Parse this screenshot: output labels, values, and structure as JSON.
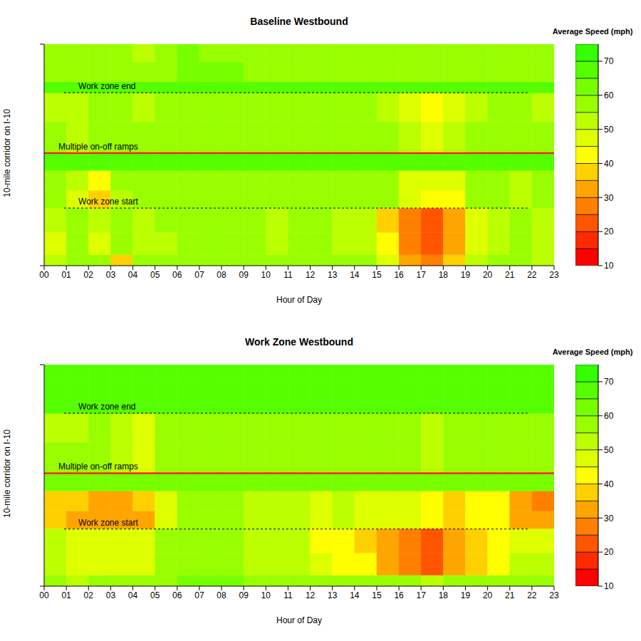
{
  "chart_data": [
    {
      "type": "heatmap",
      "title": "Baseline Westbound",
      "x_label": "Hour of Day",
      "y_label": "10-mile corridor on I-10",
      "xlim": [
        0,
        23
      ],
      "xticks": [
        {
          "value": 0,
          "label": "00"
        },
        {
          "value": 1,
          "label": "01"
        },
        {
          "value": 2,
          "label": "02"
        },
        {
          "value": 3,
          "label": "03"
        },
        {
          "value": 4,
          "label": "04"
        },
        {
          "value": 5,
          "label": "05"
        },
        {
          "value": 6,
          "label": "06"
        },
        {
          "value": 7,
          "label": "07"
        },
        {
          "value": 8,
          "label": "08"
        },
        {
          "value": 9,
          "label": "09"
        },
        10,
        11,
        12,
        13,
        14,
        15,
        16,
        17,
        18,
        19,
        20,
        21,
        22,
        23
      ],
      "ylim": [
        0,
        10
      ],
      "yticks": [
        0,
        10
      ],
      "tick_labels": "x",
      "x_edges": [
        0,
        1,
        2,
        3,
        4,
        5,
        6,
        7,
        8,
        9,
        10,
        11,
        12,
        13,
        14,
        15,
        16,
        17,
        18,
        19,
        20,
        21,
        22,
        23
      ],
      "y_edges": [
        0,
        0.5,
        1.5,
        2.6,
        3.4,
        4.3,
        5.1,
        6.5,
        7.8,
        8.3,
        9.2,
        10
      ],
      "cells": [
        [
          52,
          55,
          56,
          36,
          55,
          55,
          57,
          57,
          57,
          56,
          57,
          56,
          57,
          57,
          56,
          45,
          30,
          28,
          35,
          50,
          55,
          55,
          52
        ],
        [
          48,
          55,
          47,
          55,
          50,
          53,
          57,
          57,
          57,
          56,
          52,
          55,
          55,
          54,
          52,
          40,
          25,
          22,
          33,
          47,
          53,
          55,
          52
        ],
        [
          52,
          55,
          50,
          55,
          53,
          55,
          57,
          57,
          57,
          56,
          54,
          55,
          55,
          54,
          50,
          36,
          25,
          23,
          33,
          45,
          53,
          55,
          52
        ],
        [
          55,
          48,
          37,
          52,
          55,
          57,
          57,
          57,
          57,
          56,
          56,
          56,
          56,
          55,
          55,
          55,
          45,
          43,
          44,
          55,
          56,
          52,
          55
        ],
        [
          55,
          52,
          42,
          55,
          55,
          57,
          57,
          57,
          57,
          56,
          56,
          56,
          56,
          55,
          55,
          55,
          47,
          45,
          46,
          55,
          56,
          53,
          55
        ],
        [
          66,
          66,
          67,
          66,
          66,
          67,
          67,
          67,
          66,
          66,
          66,
          66,
          66,
          66,
          66,
          66,
          65,
          65,
          66,
          66,
          66,
          66,
          66
        ],
        [
          55,
          54,
          56,
          55,
          55,
          56,
          57,
          57,
          57,
          56,
          56,
          56,
          56,
          55,
          55,
          56,
          52,
          47,
          50,
          56,
          56,
          55,
          55
        ],
        [
          50,
          53,
          55,
          55,
          53,
          55,
          57,
          57,
          57,
          56,
          55,
          56,
          56,
          55,
          55,
          52,
          48,
          43,
          45,
          52,
          55,
          55,
          53
        ],
        [
          66,
          66,
          66,
          66,
          66,
          67,
          67,
          67,
          66,
          66,
          66,
          66,
          66,
          66,
          66,
          66,
          66,
          66,
          66,
          66,
          66,
          66,
          66
        ],
        [
          58,
          57,
          58,
          57,
          58,
          59,
          60,
          60,
          60,
          58,
          58,
          58,
          58,
          57,
          58,
          57,
          57,
          56,
          57,
          58,
          58,
          57,
          57
        ],
        [
          57,
          55,
          56,
          57,
          50,
          57,
          60,
          58,
          58,
          58,
          58,
          58,
          58,
          57,
          57,
          57,
          57,
          56,
          57,
          57,
          57,
          55,
          56
        ]
      ],
      "colorbar": {
        "title": "Average Speed (mph)",
        "range": [
          10,
          75
        ],
        "ticks": [
          10,
          20,
          30,
          40,
          50,
          60,
          70
        ],
        "breaks": [
          10,
          15,
          20,
          25,
          30,
          35,
          40,
          45,
          50,
          55,
          60,
          65,
          70,
          75
        ],
        "colors": [
          "#ff0000",
          "#ff2a00",
          "#ff5500",
          "#ff7f00",
          "#ffa500",
          "#ffd000",
          "#ffff00",
          "#ddff00",
          "#bbff00",
          "#99ff00",
          "#77ff00",
          "#55ff00",
          "#33ff00"
        ]
      },
      "annotations": [
        {
          "label": "Work zone end",
          "y": 7.81,
          "x": [
            0.9,
            21.8
          ],
          "line_style": "dashed",
          "color": "#000000"
        },
        {
          "label": "Multiple on-off ramps",
          "y": 5.08,
          "x": [
            0,
            23
          ],
          "line_style": "solid",
          "color": "#ff2020"
        },
        {
          "label": "Work zone start",
          "y": 2.6,
          "x": [
            0.9,
            21.8
          ],
          "line_style": "dashed",
          "color": "#000000"
        }
      ]
    },
    {
      "type": "heatmap",
      "title": "Work Zone Westbound",
      "x_label": "Hour of Day",
      "y_label": "10-mile corridor on I-10",
      "xlim": [
        0,
        23
      ],
      "xticks": [
        {
          "value": 0,
          "label": "00"
        },
        {
          "value": 1,
          "label": "01"
        },
        {
          "value": 2,
          "label": "02"
        },
        {
          "value": 3,
          "label": "03"
        },
        {
          "value": 4,
          "label": "04"
        },
        {
          "value": 5,
          "label": "05"
        },
        {
          "value": 6,
          "label": "06"
        },
        {
          "value": 7,
          "label": "07"
        },
        {
          "value": 8,
          "label": "08"
        },
        {
          "value": 9,
          "label": "09"
        },
        10,
        11,
        12,
        13,
        14,
        15,
        16,
        17,
        18,
        19,
        20,
        21,
        22,
        23
      ],
      "ylim": [
        0,
        10
      ],
      "yticks": [
        0,
        10
      ],
      "tick_labels": "x",
      "x_edges": [
        0,
        1,
        2,
        3,
        4,
        5,
        6,
        7,
        8,
        9,
        10,
        11,
        12,
        13,
        14,
        15,
        16,
        17,
        18,
        19,
        20,
        21,
        22,
        23
      ],
      "y_edges": [
        0,
        0.5,
        1.5,
        2.6,
        3.4,
        4.3,
        5.1,
        6.5,
        7.8,
        8.3,
        9.2,
        10
      ],
      "cells": [
        [
          55,
          52,
          55,
          55,
          55,
          58,
          60,
          60,
          60,
          58,
          58,
          58,
          58,
          57,
          57,
          55,
          55,
          52,
          55,
          57,
          58,
          58,
          57
        ],
        [
          52,
          47,
          46,
          46,
          47,
          55,
          58,
          58,
          58,
          54,
          52,
          52,
          46,
          42,
          40,
          33,
          27,
          22,
          30,
          36,
          44,
          50,
          52
        ],
        [
          50,
          46,
          45,
          46,
          48,
          57,
          58,
          58,
          58,
          53,
          52,
          52,
          44,
          40,
          39,
          34,
          26,
          24,
          30,
          38,
          42,
          45,
          48
        ],
        [
          38,
          34,
          30,
          33,
          34,
          46,
          57,
          58,
          57,
          52,
          50,
          50,
          48,
          50,
          45,
          46,
          45,
          41,
          37,
          42,
          42,
          32,
          30
        ],
        [
          38,
          35,
          31,
          33,
          35,
          47,
          57,
          58,
          57,
          52,
          50,
          50,
          48,
          50,
          45,
          46,
          45,
          42,
          37,
          42,
          41,
          31,
          29
        ],
        [
          61,
          60,
          60,
          61,
          61,
          62,
          63,
          63,
          62,
          61,
          61,
          61,
          61,
          61,
          61,
          61,
          61,
          60,
          61,
          61,
          61,
          60,
          60
        ],
        [
          56,
          55,
          55,
          54,
          47,
          56,
          58,
          58,
          58,
          56,
          55,
          56,
          56,
          55,
          55,
          56,
          55,
          52,
          55,
          56,
          56,
          55,
          55
        ],
        [
          52,
          54,
          55,
          54,
          45,
          55,
          58,
          58,
          58,
          56,
          55,
          55,
          55,
          55,
          55,
          55,
          56,
          50,
          55,
          55,
          55,
          55,
          55
        ],
        [
          66,
          66,
          66,
          66,
          66,
          66,
          66,
          66,
          66,
          66,
          66,
          66,
          66,
          66,
          66,
          66,
          66,
          66,
          66,
          66,
          66,
          66,
          66
        ],
        [
          66,
          66,
          66,
          66,
          67,
          67,
          68,
          68,
          67,
          66,
          66,
          66,
          66,
          66,
          66,
          66,
          66,
          66,
          66,
          66,
          66,
          66,
          66
        ],
        [
          66,
          66,
          67,
          67,
          67,
          68,
          68,
          68,
          67,
          67,
          66,
          66,
          66,
          66,
          66,
          66,
          66,
          66,
          66,
          66,
          66,
          66,
          66
        ]
      ],
      "colorbar": {
        "title": "Average Speed (mph)",
        "range": [
          10,
          75
        ],
        "ticks": [
          10,
          20,
          30,
          40,
          50,
          60,
          70
        ],
        "breaks": [
          10,
          15,
          20,
          25,
          30,
          35,
          40,
          45,
          50,
          55,
          60,
          65,
          70,
          75
        ],
        "colors": [
          "#ff0000",
          "#ff2a00",
          "#ff5500",
          "#ff7f00",
          "#ffa500",
          "#ffd000",
          "#ffff00",
          "#ddff00",
          "#bbff00",
          "#99ff00",
          "#77ff00",
          "#55ff00",
          "#33ff00"
        ]
      },
      "annotations": [
        {
          "label": "Work zone end",
          "y": 7.81,
          "x": [
            0.9,
            21.8
          ],
          "line_style": "dashed",
          "color": "#000000"
        },
        {
          "label": "Multiple on-off ramps",
          "y": 5.1,
          "x": [
            0,
            23
          ],
          "line_style": "solid",
          "color": "#ff2020"
        },
        {
          "label": "Work zone start",
          "y": 2.58,
          "x": [
            0.9,
            21.8
          ],
          "line_style": "dashed",
          "color": "#000000"
        }
      ]
    }
  ]
}
